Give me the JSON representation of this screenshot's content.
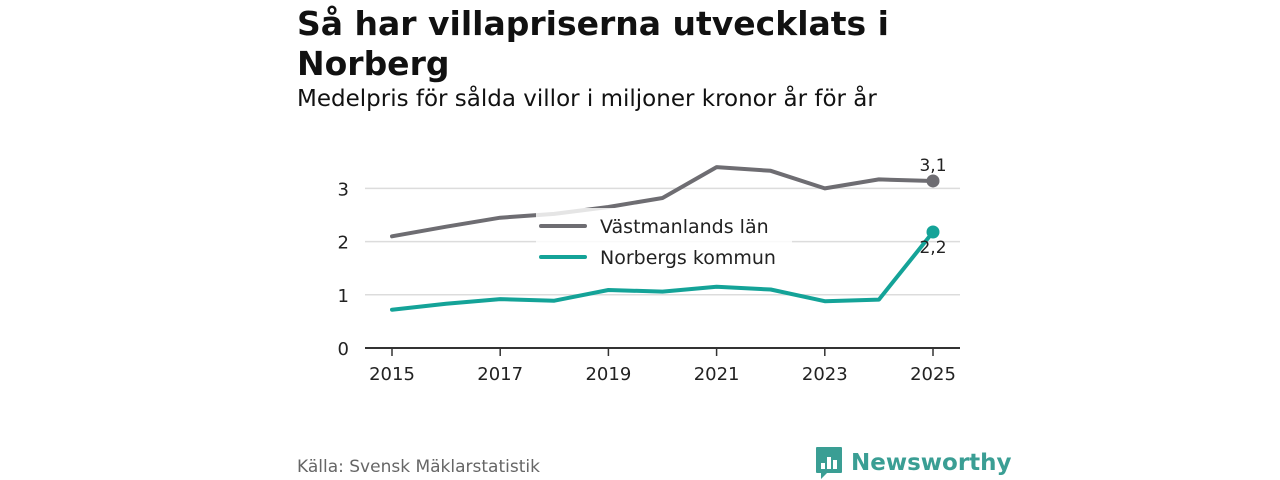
{
  "title": "Så har villapriserna utvecklats i Norberg",
  "subtitle": "Medelpris för sålda villor i miljoner kronor år för år",
  "source": "Källa: Svensk Mäklarstatistik",
  "brand": "Newsworthy",
  "chart_data": {
    "type": "line",
    "x": [
      2015,
      2016,
      2017,
      2018,
      2019,
      2020,
      2021,
      2022,
      2023,
      2024,
      2025
    ],
    "xticks": [
      "2015",
      "2017",
      "2019",
      "2021",
      "2023",
      "2025"
    ],
    "yticks": [
      "0",
      "1",
      "2",
      "3"
    ],
    "ylim": [
      0,
      3.4
    ],
    "series": [
      {
        "name": "Västmanlands län",
        "color": "#6e6d72",
        "values": [
          2.1,
          2.28,
          2.45,
          2.52,
          2.65,
          2.82,
          3.4,
          3.33,
          3.0,
          3.17,
          3.14
        ],
        "end_label": "3,1"
      },
      {
        "name": "Norbergs kommun",
        "color": "#14a398",
        "values": [
          0.72,
          0.83,
          0.92,
          0.89,
          1.09,
          1.06,
          1.15,
          1.1,
          0.88,
          0.91,
          2.18
        ],
        "end_label": "2,2"
      }
    ]
  }
}
